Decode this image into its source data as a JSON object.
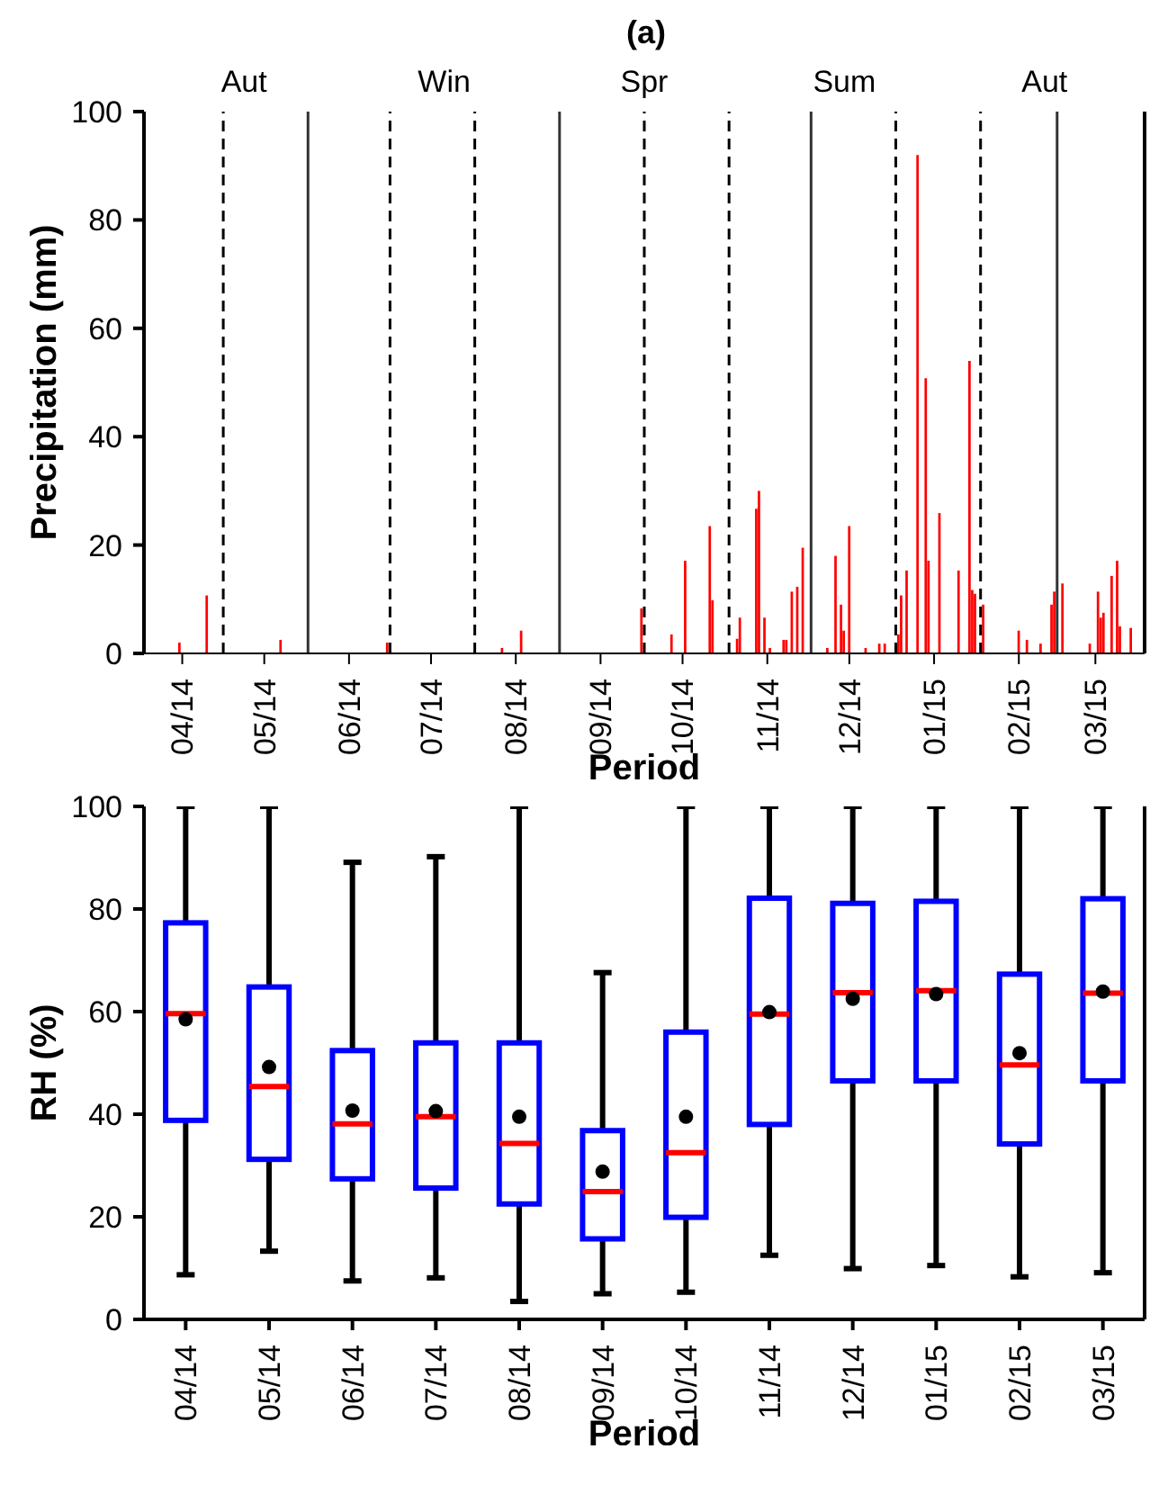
{
  "chart_data": [
    {
      "type": "bar",
      "title": "(a)",
      "xlabel": "Period",
      "ylabel": "Precipitation (mm)",
      "color": "#ff0000",
      "x": [
        "2014-03-31",
        "2014-04-10",
        "2014-05-07",
        "2014-06-15",
        "2014-07-27",
        "2014-08-03",
        "2014-09-16",
        "2014-09-27",
        "2014-10-02",
        "2014-10-11",
        "2014-10-12",
        "2014-10-21",
        "2014-10-22",
        "2014-10-28",
        "2014-10-29",
        "2014-10-31",
        "2014-11-02",
        "2014-11-07",
        "2014-11-08",
        "2014-11-10",
        "2014-11-12",
        "2014-11-14",
        "2014-11-23",
        "2014-11-26",
        "2014-11-28",
        "2014-11-29",
        "2014-12-01",
        "2014-12-07",
        "2014-12-12",
        "2014-12-14",
        "2014-12-19",
        "2014-12-20",
        "2014-12-22",
        "2014-12-26",
        "2014-12-29",
        "2014-12-30",
        "2015-01-03",
        "2015-01-10",
        "2015-01-14",
        "2015-01-15",
        "2015-01-16",
        "2015-01-19",
        "2015-02-01",
        "2015-02-04",
        "2015-02-09",
        "2015-02-13",
        "2015-02-14",
        "2015-02-17",
        "2015-02-27",
        "2015-03-02",
        "2015-03-03",
        "2015-03-04",
        "2015-03-07",
        "2015-03-09",
        "2015-03-10",
        "2015-03-14"
      ],
      "values": [
        2,
        10.7,
        2.5,
        2,
        1,
        4.2,
        8.3,
        3.5,
        17.1,
        23.5,
        9.8,
        2.7,
        6.6,
        26.7,
        30,
        6.6,
        1,
        2.5,
        2.5,
        11.4,
        12.3,
        19.5,
        1,
        18,
        9,
        4.2,
        23.5,
        1,
        1.8,
        1.8,
        3.5,
        10.7,
        15.3,
        92,
        50.8,
        17.1,
        25.9,
        15.3,
        54,
        11.7,
        11,
        9,
        4.2,
        2.5,
        1.8,
        9,
        11.4,
        12.9,
        1.8,
        11.4,
        6.6,
        7.5,
        14.3,
        17.1,
        5,
        4.7
      ],
      "xlim": [
        "2014-03-18",
        "2015-03-19"
      ],
      "xticks": [
        {
          "value": "2014-04-01",
          "label": "04/14"
        },
        {
          "value": "2014-05-01",
          "label": "05/14"
        },
        {
          "value": "2014-06-01",
          "label": "06/14"
        },
        {
          "value": "2014-07-01",
          "label": "07/14"
        },
        {
          "value": "2014-08-01",
          "label": "08/14"
        },
        {
          "value": "2014-09-01",
          "label": "09/14"
        },
        {
          "value": "2014-10-01",
          "label": "10/14"
        },
        {
          "value": "2014-11-01",
          "label": "11/14"
        },
        {
          "value": "2014-12-01",
          "label": "12/14"
        },
        {
          "value": "2015-01-01",
          "label": "01/15"
        },
        {
          "value": "2015-02-01",
          "label": "02/15"
        },
        {
          "value": "2015-03-01",
          "label": "03/15"
        }
      ],
      "ylim": [
        0,
        100
      ],
      "yticks": [
        0,
        20,
        40,
        60,
        80,
        100
      ],
      "ref_lines": [
        {
          "axis": "x",
          "value": "2014-05-17",
          "color": "#333333",
          "line_style": "solid"
        },
        {
          "axis": "x",
          "value": "2014-08-17",
          "color": "#333333",
          "line_style": "solid"
        },
        {
          "axis": "x",
          "value": "2014-11-17",
          "color": "#333333",
          "line_style": "solid"
        },
        {
          "axis": "x",
          "value": "2015-02-15",
          "color": "#333333",
          "line_style": "solid"
        },
        {
          "axis": "x",
          "value": "2014-04-16",
          "color": "#000000",
          "line_style": "dashed"
        },
        {
          "axis": "x",
          "value": "2014-06-16",
          "color": "#000000",
          "line_style": "dashed"
        },
        {
          "axis": "x",
          "value": "2014-07-17",
          "color": "#000000",
          "line_style": "dashed"
        },
        {
          "axis": "x",
          "value": "2014-09-17",
          "color": "#000000",
          "line_style": "dashed"
        },
        {
          "axis": "x",
          "value": "2014-10-18",
          "color": "#000000",
          "line_style": "dashed"
        },
        {
          "axis": "x",
          "value": "2014-12-18",
          "color": "#000000",
          "line_style": "dashed"
        },
        {
          "axis": "x",
          "value": "2015-01-18",
          "color": "#000000",
          "line_style": "dashed"
        }
      ],
      "annotations": [
        "Aut",
        "Win",
        "Spr",
        "Sum",
        "Aut"
      ]
    },
    {
      "type": "box",
      "xlabel": "Period",
      "ylabel": "RH (%)",
      "color": "#0000ff",
      "categories": [
        "04/14",
        "05/14",
        "06/14",
        "07/14",
        "08/14",
        "09/14",
        "10/14",
        "11/14",
        "12/14",
        "01/15",
        "02/15",
        "03/15"
      ],
      "boxes": [
        {
          "low": 8.7,
          "q1": 38.8,
          "median": 59.6,
          "q3": 77.3,
          "high": 100,
          "mean": 58.5
        },
        {
          "low": 13.3,
          "q1": 31.2,
          "median": 45.4,
          "q3": 64.8,
          "high": 100,
          "mean": 49.2
        },
        {
          "low": 7.5,
          "q1": 27.4,
          "median": 38.1,
          "q3": 52.4,
          "high": 89.1,
          "mean": 40.7
        },
        {
          "low": 8.1,
          "q1": 25.6,
          "median": 39.5,
          "q3": 53.9,
          "high": 90.2,
          "mean": 40.6
        },
        {
          "low": 3.5,
          "q1": 22.5,
          "median": 34.3,
          "q3": 53.9,
          "high": 100,
          "mean": 39.5
        },
        {
          "low": 5,
          "q1": 15.7,
          "median": 24.9,
          "q3": 36.8,
          "high": 67.6,
          "mean": 28.8
        },
        {
          "low": 5.3,
          "q1": 19.9,
          "median": 32.5,
          "q3": 56,
          "high": 100,
          "mean": 39.5
        },
        {
          "low": 12.5,
          "q1": 38,
          "median": 59.5,
          "q3": 82.1,
          "high": 100,
          "mean": 59.9
        },
        {
          "low": 9.9,
          "q1": 46.5,
          "median": 63.7,
          "q3": 81.1,
          "high": 100,
          "mean": 62.5
        },
        {
          "low": 10.5,
          "q1": 46.5,
          "median": 64.1,
          "q3": 81.5,
          "high": 100,
          "mean": 63.4
        },
        {
          "low": 8.3,
          "q1": 34.2,
          "median": 49.6,
          "q3": 67.3,
          "high": 100,
          "mean": 51.9
        },
        {
          "low": 9.1,
          "q1": 46.5,
          "median": 63.6,
          "q3": 82,
          "high": 100,
          "mean": 63.9
        }
      ],
      "ylim": [
        0,
        100
      ],
      "yticks": [
        0,
        20,
        40,
        60,
        80,
        100
      ]
    }
  ]
}
